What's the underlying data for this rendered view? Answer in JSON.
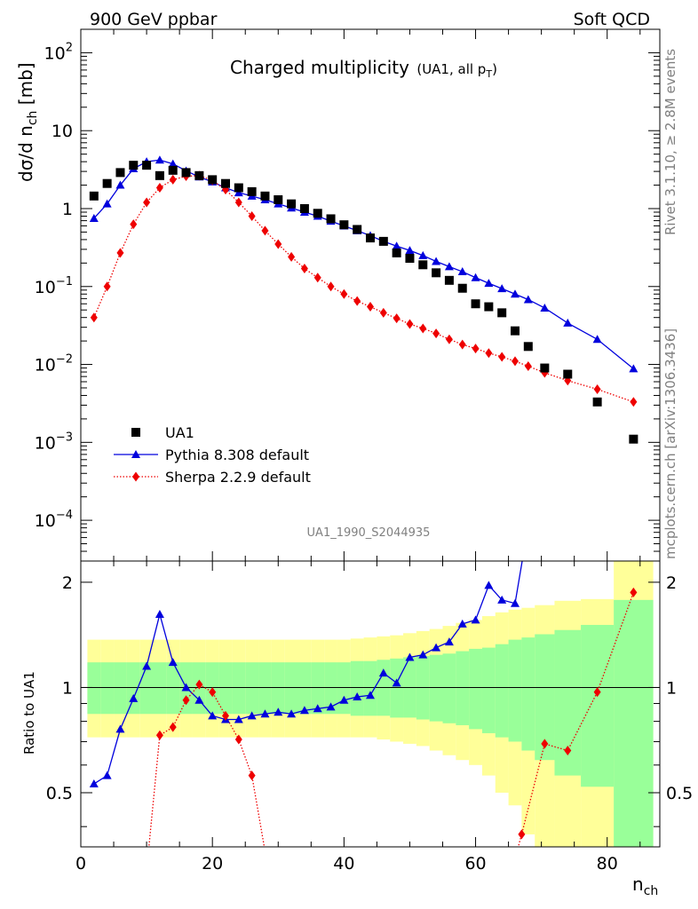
{
  "header": {
    "left": "900 GeV ppbar",
    "right": "Soft QCD"
  },
  "side_labels": {
    "rivet": "Rivet 3.1.10, ≥ 2.8M events",
    "mcplots": "mcplots.cern.ch [arXiv:1306.3436]"
  },
  "chart_data": {
    "type": "scatter",
    "title": "Charged multiplicity",
    "title_extra": "(UA1, all p",
    "title_extra_sub": "T",
    "title_extra_end": ")",
    "analysis_id": "UA1_1990_S2044935",
    "ylabel": "dσ/d n",
    "ylabel_sub": "ch",
    "ylabel_unit": " [mb]",
    "xlabel": "n",
    "xlabel_sub": "ch",
    "ratio_ylabel": "Ratio to UA1",
    "xlim": [
      0,
      88
    ],
    "ylim_log": [
      3e-05,
      200
    ],
    "ratio_ylim": [
      0.35,
      2.3
    ],
    "x_ticks": [
      "0",
      "20",
      "40",
      "60",
      "80"
    ],
    "main_y_ticks": [
      {
        "base": "10",
        "exp": "2"
      },
      {
        "base": "10",
        "exp": ""
      },
      {
        "base": "1",
        "exp": ""
      },
      {
        "base": "10",
        "exp": "−1"
      },
      {
        "base": "10",
        "exp": "−2"
      },
      {
        "base": "10",
        "exp": "−3"
      },
      {
        "base": "10",
        "exp": "−4"
      }
    ],
    "ratio_y_ticks": [
      "0.5",
      "1",
      "2"
    ],
    "legend": {
      "placement": "bottom-left",
      "entries": [
        "UA1",
        "Pythia 8.308 default",
        "Sherpa 2.2.9 default"
      ]
    },
    "colors": {
      "data": "#000000",
      "pythia": "#0000dd",
      "sherpa": "#ee0000",
      "band_inner": "#99ff99",
      "band_outer": "#ffff99"
    },
    "series": [
      {
        "name": "UA1",
        "x": [
          2,
          4,
          6,
          8,
          10,
          12,
          14,
          16,
          18,
          20,
          22,
          24,
          26,
          28,
          30,
          32,
          34,
          36,
          38,
          40,
          42,
          44,
          46,
          48,
          50,
          52,
          54,
          56,
          58,
          60,
          62,
          64,
          66,
          68,
          70.5,
          74,
          78.5,
          84
        ],
        "y": [
          1.45,
          2.1,
          2.9,
          3.6,
          3.6,
          2.65,
          3.1,
          2.9,
          2.65,
          2.35,
          2.1,
          1.85,
          1.65,
          1.45,
          1.3,
          1.15,
          1.0,
          0.87,
          0.74,
          0.62,
          0.54,
          0.42,
          0.38,
          0.27,
          0.23,
          0.19,
          0.15,
          0.12,
          0.095,
          0.06,
          0.055,
          0.046,
          0.027,
          0.017,
          0.009,
          0.0075,
          0.0033,
          0.0011
        ]
      },
      {
        "name": "Pythia 8.308 default",
        "x": [
          2,
          4,
          6,
          8,
          10,
          12,
          14,
          16,
          18,
          20,
          22,
          24,
          26,
          28,
          30,
          32,
          34,
          36,
          38,
          40,
          42,
          44,
          46,
          48,
          50,
          52,
          54,
          56,
          58,
          60,
          62,
          64,
          66,
          68,
          70.5,
          74,
          78.5,
          84
        ],
        "y": [
          0.75,
          1.15,
          2.0,
          3.25,
          4.0,
          4.2,
          3.75,
          3.05,
          2.55,
          2.2,
          1.85,
          1.6,
          1.45,
          1.3,
          1.15,
          1.02,
          0.9,
          0.8,
          0.69,
          0.6,
          0.52,
          0.45,
          0.38,
          0.33,
          0.29,
          0.25,
          0.21,
          0.18,
          0.155,
          0.13,
          0.11,
          0.094,
          0.08,
          0.068,
          0.053,
          0.034,
          0.021,
          0.0088
        ]
      },
      {
        "name": "Sherpa 2.2.9 default",
        "x": [
          2,
          4,
          6,
          8,
          10,
          12,
          14,
          16,
          18,
          20,
          22,
          24,
          26,
          28,
          30,
          32,
          34,
          36,
          38,
          40,
          42,
          44,
          46,
          48,
          50,
          52,
          54,
          56,
          58,
          60,
          62,
          64,
          66,
          68,
          70.5,
          74,
          78.5,
          84
        ],
        "y": [
          0.04,
          0.1,
          0.27,
          0.63,
          1.2,
          1.85,
          2.35,
          2.6,
          2.65,
          2.3,
          1.75,
          1.2,
          0.8,
          0.52,
          0.35,
          0.24,
          0.17,
          0.13,
          0.1,
          0.08,
          0.065,
          0.055,
          0.046,
          0.039,
          0.033,
          0.029,
          0.025,
          0.021,
          0.018,
          0.016,
          0.014,
          0.0125,
          0.011,
          0.0095,
          0.0078,
          0.0062,
          0.0048,
          0.0033
        ]
      }
    ],
    "ratio_series": [
      {
        "name": "Pythia 8.308 default",
        "x": [
          2,
          4,
          6,
          8,
          10,
          12,
          14,
          16,
          18,
          20,
          22,
          24,
          26,
          28,
          30,
          32,
          34,
          36,
          38,
          40,
          42,
          44,
          46,
          48,
          50,
          52,
          54,
          56,
          58,
          60,
          62,
          64,
          66
        ],
        "y": [
          0.53,
          0.56,
          0.76,
          0.93,
          1.15,
          1.62,
          1.18,
          1.0,
          0.92,
          0.83,
          0.81,
          0.81,
          0.83,
          0.84,
          0.85,
          0.84,
          0.86,
          0.87,
          0.88,
          0.92,
          0.94,
          0.95,
          1.1,
          1.03,
          1.22,
          1.24,
          1.3,
          1.35,
          1.52,
          1.56,
          1.96,
          1.78,
          1.74
        ]
      },
      {
        "name": "Sherpa 2.2.9 default",
        "x": [
          10,
          12,
          14,
          16,
          18,
          20,
          22,
          24,
          26,
          28,
          67,
          70.5,
          74,
          78.5,
          84
        ],
        "y": [
          0.3,
          0.73,
          0.77,
          0.92,
          1.02,
          0.97,
          0.83,
          0.71,
          0.56,
          0.34,
          0.38,
          0.69,
          0.66,
          0.97,
          1.87
        ]
      }
    ],
    "ratio_bands": {
      "x_edges": [
        1,
        3,
        5,
        7,
        9,
        11,
        13,
        15,
        17,
        19,
        21,
        23,
        25,
        27,
        29,
        31,
        33,
        35,
        37,
        39,
        41,
        43,
        45,
        47,
        49,
        51,
        53,
        55,
        57,
        59,
        61,
        63,
        65,
        67,
        69,
        72,
        76,
        81,
        87
      ],
      "inner": [
        [
          0.84,
          1.18
        ],
        [
          0.84,
          1.18
        ],
        [
          0.84,
          1.18
        ],
        [
          0.84,
          1.18
        ],
        [
          0.84,
          1.18
        ],
        [
          0.84,
          1.18
        ],
        [
          0.84,
          1.18
        ],
        [
          0.84,
          1.18
        ],
        [
          0.84,
          1.18
        ],
        [
          0.84,
          1.18
        ],
        [
          0.84,
          1.18
        ],
        [
          0.84,
          1.18
        ],
        [
          0.84,
          1.18
        ],
        [
          0.84,
          1.18
        ],
        [
          0.84,
          1.18
        ],
        [
          0.84,
          1.18
        ],
        [
          0.84,
          1.18
        ],
        [
          0.84,
          1.18
        ],
        [
          0.84,
          1.18
        ],
        [
          0.84,
          1.18
        ],
        [
          0.83,
          1.19
        ],
        [
          0.83,
          1.19
        ],
        [
          0.83,
          1.2
        ],
        [
          0.82,
          1.21
        ],
        [
          0.82,
          1.22
        ],
        [
          0.81,
          1.23
        ],
        [
          0.8,
          1.24
        ],
        [
          0.79,
          1.25
        ],
        [
          0.78,
          1.27
        ],
        [
          0.76,
          1.29
        ],
        [
          0.74,
          1.3
        ],
        [
          0.72,
          1.33
        ],
        [
          0.7,
          1.37
        ],
        [
          0.66,
          1.39
        ],
        [
          0.62,
          1.42
        ],
        [
          0.56,
          1.46
        ],
        [
          0.52,
          1.51
        ],
        [
          0.35,
          1.78
        ]
      ],
      "outer": [
        [
          0.72,
          1.37
        ],
        [
          0.72,
          1.37
        ],
        [
          0.72,
          1.37
        ],
        [
          0.72,
          1.37
        ],
        [
          0.72,
          1.37
        ],
        [
          0.72,
          1.37
        ],
        [
          0.72,
          1.37
        ],
        [
          0.72,
          1.37
        ],
        [
          0.72,
          1.37
        ],
        [
          0.72,
          1.37
        ],
        [
          0.72,
          1.37
        ],
        [
          0.72,
          1.37
        ],
        [
          0.72,
          1.37
        ],
        [
          0.72,
          1.37
        ],
        [
          0.72,
          1.37
        ],
        [
          0.72,
          1.37
        ],
        [
          0.72,
          1.37
        ],
        [
          0.72,
          1.37
        ],
        [
          0.72,
          1.37
        ],
        [
          0.72,
          1.37
        ],
        [
          0.72,
          1.38
        ],
        [
          0.72,
          1.39
        ],
        [
          0.71,
          1.4
        ],
        [
          0.7,
          1.41
        ],
        [
          0.69,
          1.43
        ],
        [
          0.68,
          1.45
        ],
        [
          0.66,
          1.47
        ],
        [
          0.64,
          1.5
        ],
        [
          0.62,
          1.53
        ],
        [
          0.6,
          1.56
        ],
        [
          0.56,
          1.6
        ],
        [
          0.5,
          1.64
        ],
        [
          0.46,
          1.67
        ],
        [
          0.38,
          1.69
        ],
        [
          0.35,
          1.72
        ],
        [
          0.35,
          1.77
        ],
        [
          0.35,
          1.79
        ],
        [
          0.35,
          2.3
        ]
      ]
    }
  }
}
